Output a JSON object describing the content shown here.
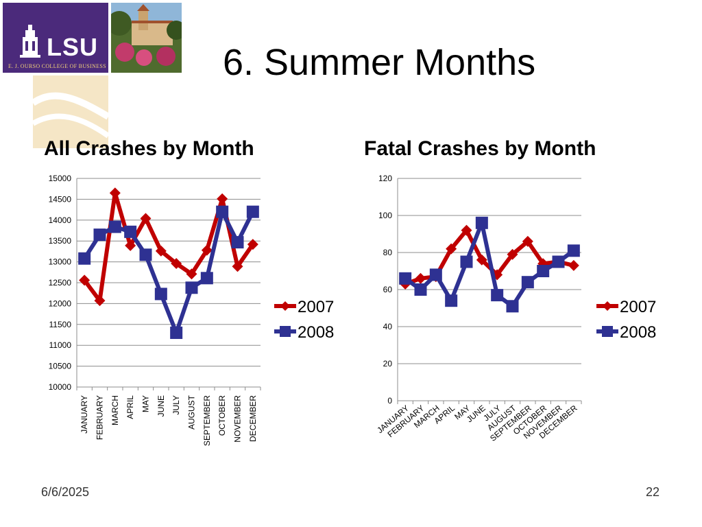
{
  "slide": {
    "title": "6. Summer Months",
    "date": "6/6/2025",
    "page_number": "22",
    "logo_text": "LSU",
    "logo_subtext": "E. J. OURSO COLLEGE OF BUSINESS"
  },
  "colors": {
    "series_2007": "#c00000",
    "series_2008": "#2e3192",
    "logo_purple": "#4b2a7b",
    "tan": "#f5e6c6",
    "gridline": "#8c8c8c"
  },
  "chart_data": [
    {
      "type": "line",
      "title": "All Crashes by Month",
      "categories": [
        "JANUARY",
        "FEBRUARY",
        "MARCH",
        "APRIL",
        "MAY",
        "JUNE",
        "JULY",
        "AUGUST",
        "SEPTEMBER",
        "OCTOBER",
        "NOVEMBER",
        "DECEMBER"
      ],
      "series": [
        {
          "name": "2007",
          "values": [
            12560,
            12070,
            14650,
            13390,
            14040,
            13260,
            12960,
            12710,
            13280,
            14510,
            12890,
            13420
          ]
        },
        {
          "name": "2008",
          "values": [
            13080,
            13650,
            13840,
            13720,
            13170,
            12230,
            11300,
            12380,
            12610,
            14200,
            13470,
            14200
          ]
        }
      ],
      "ylim": [
        10000,
        15000
      ],
      "yticks": [
        "10000",
        "10500",
        "11000",
        "11500",
        "12000",
        "12500",
        "13000",
        "13500",
        "14000",
        "14500",
        "15000"
      ],
      "tick_label_rotation": "vertical",
      "legend_position": "right",
      "grid": true
    },
    {
      "type": "line",
      "title": "Fatal Crashes by Month",
      "categories": [
        "JANUARY",
        "FEBRUARY",
        "MARCH",
        "APRIL",
        "MAY",
        "JUNE",
        "JULY",
        "AUGUST",
        "SEPTEMBER",
        "OCTOBER",
        "NOVEMBER",
        "DECEMBER"
      ],
      "series": [
        {
          "name": "2007",
          "values": [
            63,
            66,
            67,
            82,
            92,
            76,
            68,
            79,
            86,
            74,
            75,
            73
          ]
        },
        {
          "name": "2008",
          "values": [
            66,
            60,
            68,
            54,
            75,
            96,
            57,
            51,
            64,
            70,
            75,
            81
          ]
        }
      ],
      "ylim": [
        0,
        120
      ],
      "yticks": [
        "0",
        "20",
        "40",
        "60",
        "80",
        "100",
        "120"
      ],
      "tick_label_rotation": "diagonal",
      "legend_position": "right",
      "grid": true
    }
  ]
}
